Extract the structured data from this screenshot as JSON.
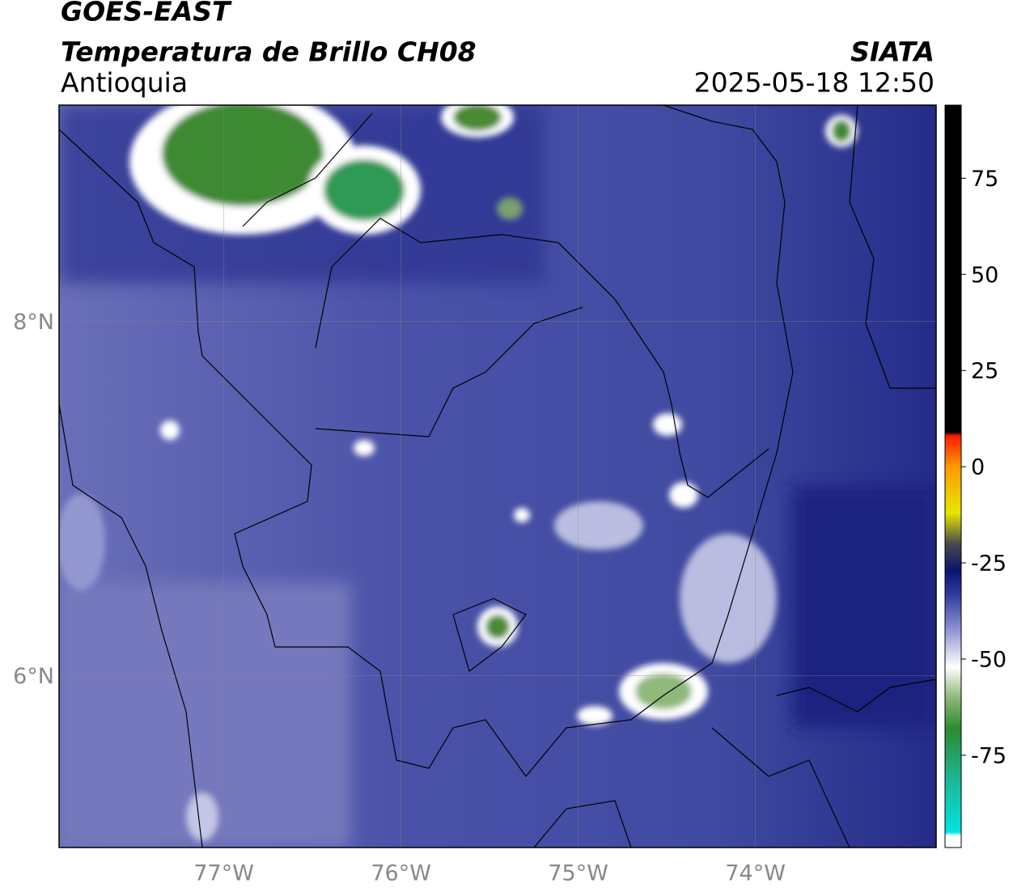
{
  "chart_data": {
    "type": "map",
    "title": "GOES-EAST",
    "subtitle": "Temperatura de Brillo CH08",
    "region": "Antioquia",
    "source": "SIATA",
    "datetime": "2025-05-18 12:50",
    "xlim": [
      -77.93,
      -72.98
    ],
    "ylim": [
      5.03,
      9.22
    ],
    "xticks": [
      {
        "value": -77,
        "label": "77°W"
      },
      {
        "value": -76,
        "label": "76°W"
      },
      {
        "value": -75,
        "label": "75°W"
      },
      {
        "value": -74,
        "label": "74°W"
      }
    ],
    "yticks": [
      {
        "value": 6,
        "label": "6°N"
      },
      {
        "value": 8,
        "label": "8°N"
      }
    ],
    "grid": true,
    "clim": [
      -99,
      94
    ],
    "cticks": [
      75,
      50,
      25,
      0,
      -25,
      -50,
      -75
    ],
    "colorbar": [
      {
        "value": -99,
        "color": "#ffffff"
      },
      {
        "value": -96,
        "color": "#ffffff"
      },
      {
        "value": -95,
        "color": "#00e5e0"
      },
      {
        "value": -82,
        "color": "#1bb89a"
      },
      {
        "value": -68,
        "color": "#2e8b2e"
      },
      {
        "value": -60,
        "color": "#8fb87a"
      },
      {
        "value": -52,
        "color": "#ffffff"
      },
      {
        "value": -42,
        "color": "#8a8fd0"
      },
      {
        "value": -33,
        "color": "#2d3a9e"
      },
      {
        "value": -27,
        "color": "#0a1470"
      },
      {
        "value": -20,
        "color": "#4a4a4a"
      },
      {
        "value": -12,
        "color": "#e6e600"
      },
      {
        "value": 0,
        "color": "#ff9900"
      },
      {
        "value": 8,
        "color": "#ff1a00"
      },
      {
        "value": 9,
        "color": "#000000"
      },
      {
        "value": 94,
        "color": "#000000"
      }
    ]
  }
}
